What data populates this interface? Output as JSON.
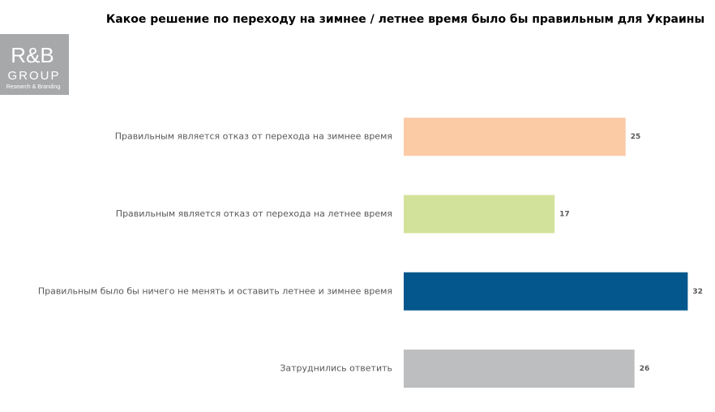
{
  "logo": {
    "brand": "R&B",
    "group": "GROUP",
    "tagline": "Research & Branding"
  },
  "chart_data": {
    "type": "bar",
    "orientation": "horizontal",
    "title": "Какое решение по переходу на зимнее / летнее время было бы правильным для Украины",
    "categories": [
      "Правильным является отказ от перехода на зимнее время",
      "Правильным является отказ от перехода на летнее время",
      "Правильным было бы ничего не менять и оставить летнее и зимнее время",
      "Затруднились ответить"
    ],
    "values": [
      25,
      17,
      32,
      26
    ],
    "colors": [
      "#fbcba6",
      "#d3e29a",
      "#03578d",
      "#bcbec0"
    ]
  }
}
